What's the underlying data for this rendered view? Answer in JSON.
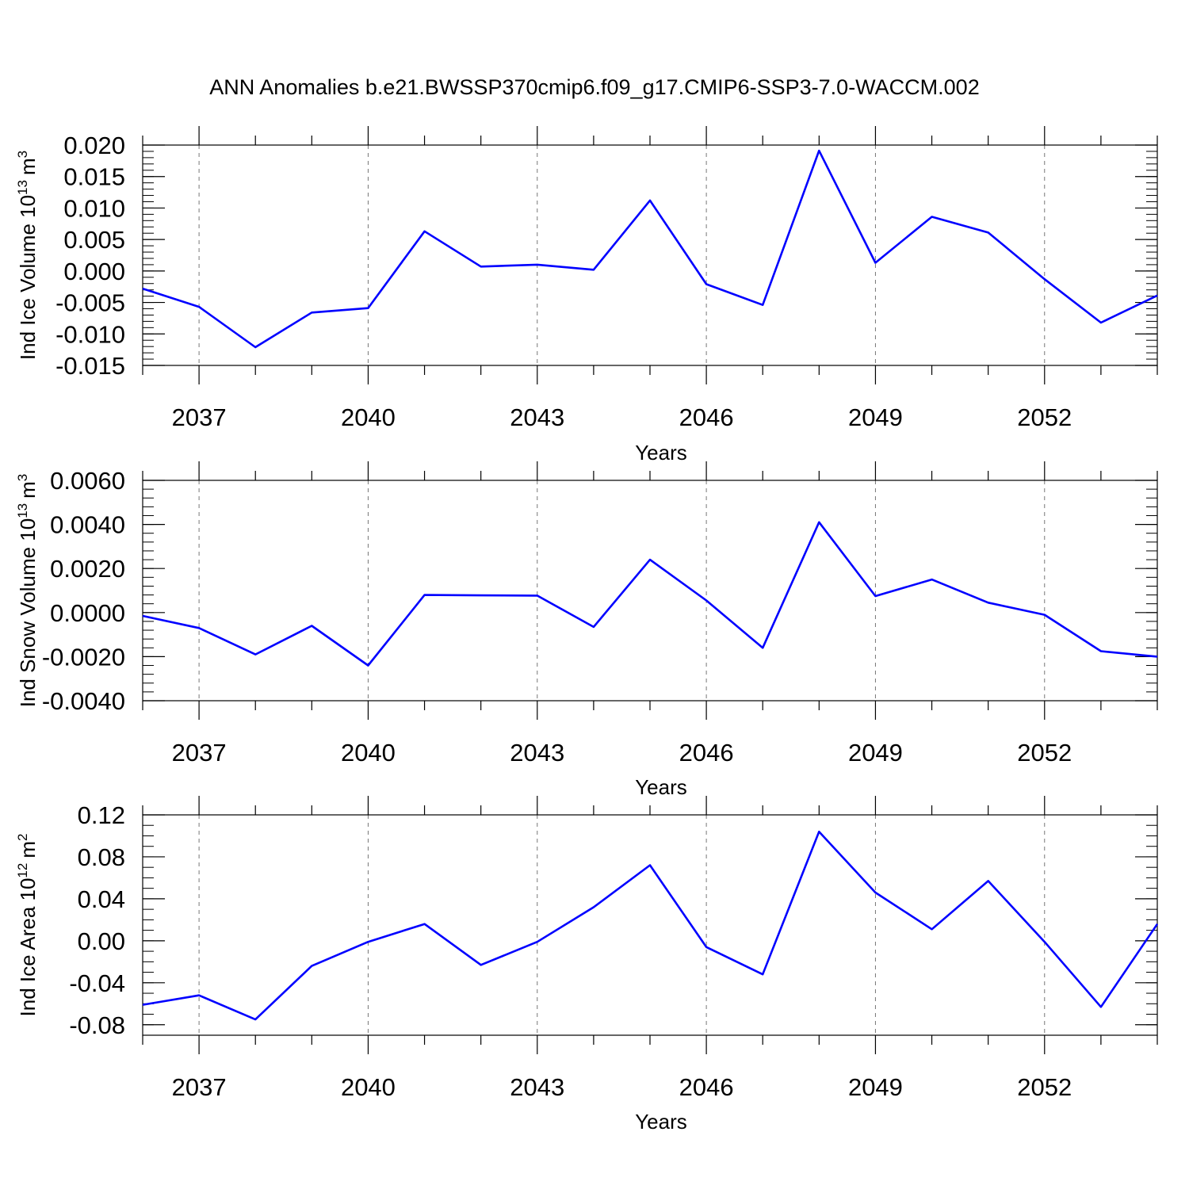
{
  "title": "ANN Anomalies b.e21.BWSSP370cmip6.f09_g17.CMIP6-SSP3-7.0-WACCM.002",
  "style": {
    "line_color": "#0000ff",
    "axis_color": "#000000",
    "grid_color": "#777777"
  },
  "chart_data": [
    {
      "type": "line",
      "ylabel": {
        "text": "Ind Ice Volume 10",
        "exponent": "13",
        "unit": "m",
        "unit_exponent": "3"
      },
      "xlabel": "Years",
      "xlim": [
        2036,
        2054
      ],
      "ylim": [
        -0.015,
        0.02
      ],
      "yticks": [
        -0.015,
        -0.01,
        -0.005,
        0.0,
        0.005,
        0.01,
        0.015,
        0.02
      ],
      "ytick_labels": [
        "-0.015",
        "-0.010",
        "-0.005",
        "0.000",
        "0.005",
        "0.010",
        "0.015",
        "0.020"
      ],
      "yminor_step": 0.001,
      "xticks": [
        2037,
        2040,
        2043,
        2046,
        2049,
        2052
      ],
      "xtick_labels": [
        "2037",
        "2040",
        "2043",
        "2046",
        "2049",
        "2052"
      ],
      "grid_x": true,
      "x": [
        2036,
        2037,
        2038,
        2039,
        2040,
        2041,
        2042,
        2043,
        2044,
        2045,
        2046,
        2047,
        2048,
        2049,
        2050,
        2051,
        2052,
        2053,
        2054
      ],
      "values": [
        -0.0028,
        -0.0057,
        -0.0121,
        -0.0066,
        -0.0059,
        0.0063,
        0.0007,
        0.001,
        0.0002,
        0.0112,
        -0.0021,
        -0.0054,
        0.0191,
        0.0013,
        0.0086,
        0.0061,
        -0.0013,
        -0.0082,
        -0.0039
      ]
    },
    {
      "type": "line",
      "ylabel": {
        "text": "Ind Snow Volume 10",
        "exponent": "13",
        "unit": "m",
        "unit_exponent": "3"
      },
      "xlabel": "Years",
      "xlim": [
        2036,
        2054
      ],
      "ylim": [
        -0.004,
        0.006
      ],
      "yticks": [
        -0.004,
        -0.002,
        0.0,
        0.002,
        0.004,
        0.006
      ],
      "ytick_labels": [
        "-0.0040",
        "-0.0020",
        "0.0000",
        "0.0020",
        "0.0040",
        "0.0060"
      ],
      "yminor_step": 0.0004,
      "xticks": [
        2037,
        2040,
        2043,
        2046,
        2049,
        2052
      ],
      "xtick_labels": [
        "2037",
        "2040",
        "2043",
        "2046",
        "2049",
        "2052"
      ],
      "grid_x": true,
      "x": [
        2036,
        2037,
        2038,
        2039,
        2040,
        2041,
        2042,
        2043,
        2044,
        2045,
        2046,
        2047,
        2048,
        2049,
        2050,
        2051,
        2052,
        2053,
        2054
      ],
      "values": [
        -0.00015,
        -0.0007,
        -0.0019,
        -0.0006,
        -0.0024,
        0.0008,
        0.00078,
        0.00077,
        -0.00065,
        0.0024,
        0.00055,
        -0.0016,
        0.0041,
        0.00075,
        0.0015,
        0.00045,
        -0.0001,
        -0.00175,
        -0.002
      ]
    },
    {
      "type": "line",
      "ylabel": {
        "text": "Ind Ice Area 10",
        "exponent": "12",
        "unit": "m",
        "unit_exponent": "2"
      },
      "xlabel": "Years",
      "xlim": [
        2036,
        2054
      ],
      "ylim": [
        -0.09,
        0.12
      ],
      "yticks": [
        -0.08,
        -0.04,
        0.0,
        0.04,
        0.08,
        0.12
      ],
      "ytick_labels": [
        "-0.08",
        "-0.04",
        "0.00",
        "0.04",
        "0.08",
        "0.12"
      ],
      "yminor_step": 0.01,
      "xticks": [
        2037,
        2040,
        2043,
        2046,
        2049,
        2052
      ],
      "xtick_labels": [
        "2037",
        "2040",
        "2043",
        "2046",
        "2049",
        "2052"
      ],
      "grid_x": true,
      "x": [
        2036,
        2037,
        2038,
        2039,
        2040,
        2041,
        2042,
        2043,
        2044,
        2045,
        2046,
        2047,
        2048,
        2049,
        2050,
        2051,
        2052,
        2053,
        2054
      ],
      "values": [
        -0.061,
        -0.052,
        -0.075,
        -0.024,
        -0.001,
        0.016,
        -0.023,
        -0.001,
        0.032,
        0.072,
        -0.006,
        -0.032,
        0.104,
        0.046,
        0.011,
        0.057,
        -0.001,
        -0.063,
        0.016
      ]
    }
  ]
}
